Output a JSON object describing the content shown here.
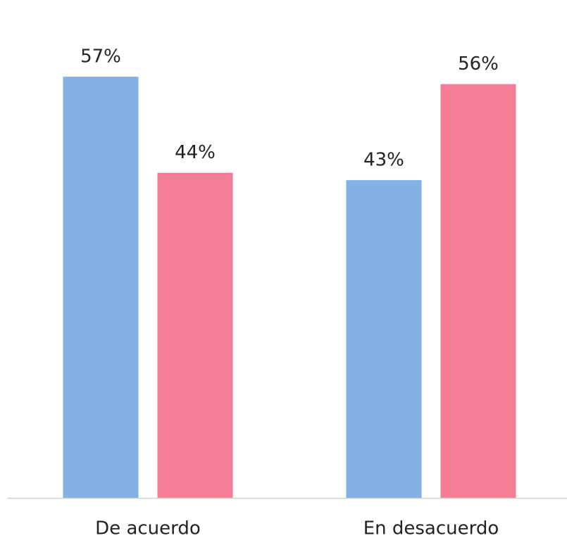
{
  "chart_data": {
    "type": "bar",
    "categories": [
      "De acuerdo",
      "En desacuerdo"
    ],
    "series": [
      {
        "color": "#82b1e3",
        "values": [
          57,
          43
        ],
        "value_labels": [
          "57%",
          "43%"
        ]
      },
      {
        "color": "#f47d96",
        "values": [
          44,
          56
        ],
        "value_labels": [
          "44%",
          "56%"
        ]
      }
    ],
    "ylim": [
      0,
      67
    ]
  }
}
